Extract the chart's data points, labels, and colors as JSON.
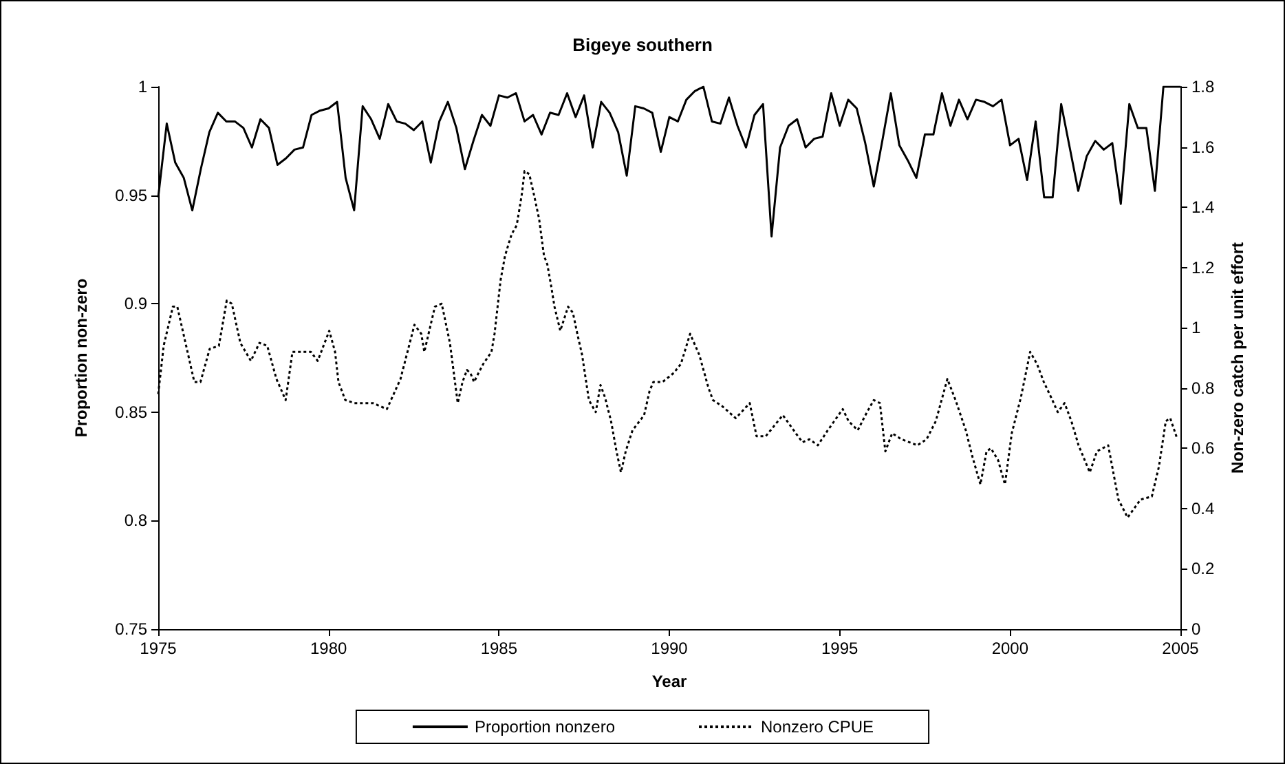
{
  "chart_data": {
    "type": "line",
    "title": "Bigeye southern",
    "xlabel": "Year",
    "ylabel": "Proportion non-zero",
    "y2label": "Non-zero catch per unit effort",
    "x": [
      1975,
      1975.25,
      1975.5,
      1975.75,
      1976,
      1976.25,
      1976.5,
      1976.75,
      1977,
      1977.25,
      1977.5,
      1977.75,
      1978,
      1978.25,
      1978.5,
      1978.75,
      1979,
      1979.25,
      1979.5,
      1979.75,
      1980,
      1980.25,
      1980.5,
      1980.75,
      1981,
      1981.25,
      1981.5,
      1981.75,
      1982,
      1982.25,
      1982.5,
      1982.75,
      1983,
      1983.25,
      1983.5,
      1983.75,
      1984,
      1984.25,
      1984.5,
      1984.75,
      1985,
      1985.25,
      1985.5,
      1985.75,
      1986,
      1986.25,
      1986.5,
      1986.75,
      1987,
      1987.25,
      1987.5,
      1987.75,
      1988,
      1988.25,
      1988.5,
      1988.75,
      1989,
      1989.25,
      1989.5,
      1989.75,
      1990,
      1990.25,
      1990.5,
      1990.75,
      1991,
      1991.25,
      1991.5,
      1991.75,
      1992,
      1992.25,
      1992.5,
      1992.75,
      1993,
      1993.25,
      1993.5,
      1993.75,
      1994,
      1994.25,
      1994.5,
      1994.75,
      1995,
      1995.25,
      1995.5,
      1995.75,
      1996,
      1996.25,
      1996.5,
      1996.75,
      1997,
      1997.25,
      1997.5,
      1997.75,
      1998,
      1998.25,
      1998.5,
      1998.75,
      1999,
      1999.25,
      1999.5,
      1999.75,
      2000,
      2000.25,
      2000.5,
      2000.75,
      2001,
      2001.25,
      2001.5,
      2001.75,
      2002,
      2002.25,
      2002.5,
      2002.75,
      2003,
      2003.25,
      2003.5,
      2003.75,
      2004,
      2004.25,
      2004.5,
      2004.75,
      2005
    ],
    "series": [
      {
        "name": "Proportion nonzero",
        "color": "#000000",
        "line_style": "solid",
        "values": [
          0.949,
          0.983,
          0.965,
          0.958,
          0.943,
          0.962,
          0.979,
          0.988,
          0.984,
          0.984,
          0.981,
          0.972,
          0.985,
          0.981,
          0.964,
          0.967,
          0.971,
          0.972,
          0.987,
          0.989,
          0.99,
          0.993,
          0.958,
          0.943,
          0.991,
          0.985,
          0.976,
          0.992,
          0.984,
          0.983,
          0.98,
          0.984,
          0.965,
          0.984,
          0.993,
          0.981,
          0.962,
          0.975,
          0.987,
          0.982,
          0.996,
          0.995,
          0.997,
          0.984,
          0.987,
          0.978,
          0.988,
          0.987,
          0.997,
          0.986,
          0.996,
          0.972,
          0.993,
          0.988,
          0.979,
          0.959,
          0.991,
          0.99,
          0.988,
          0.97,
          0.986,
          0.984,
          0.994,
          0.998,
          1.0,
          0.984,
          0.983,
          0.995,
          0.982,
          0.972,
          0.987,
          0.992,
          0.931,
          0.972,
          0.982,
          0.985,
          0.972,
          0.976,
          0.977,
          0.997,
          0.982,
          0.994,
          0.99,
          0.974,
          0.954,
          0.975,
          0.997,
          0.973,
          0.966,
          0.958,
          0.978,
          0.978,
          0.997,
          0.982,
          0.994,
          0.985,
          0.994,
          0.993,
          0.991,
          0.994,
          0.973,
          0.976,
          0.957,
          0.984,
          0.949,
          0.949,
          0.992,
          0.972,
          0.952,
          0.968,
          0.975,
          0.971,
          0.974,
          0.946,
          0.992,
          0.981,
          0.981,
          0.952,
          1.0,
          1.0,
          1.0
        ]
      },
      {
        "name": "Nonzero CPUE",
        "color": "#000000",
        "line_style": "dotted",
        "axis": "y2",
        "x": [
          1975,
          1975.16,
          1975.43,
          1975.56,
          1975.8,
          1976.06,
          1976.24,
          1976.51,
          1976.78,
          1977.01,
          1977.16,
          1977.41,
          1977.72,
          1977.97,
          1978.2,
          1978.47,
          1978.74,
          1978.94,
          1979.21,
          1979.48,
          1979.68,
          1980.02,
          1980.19,
          1980.29,
          1980.49,
          1980.76,
          1981.3,
          1981.71,
          1982.11,
          1982.52,
          1982.72,
          1982.81,
          1983.12,
          1983.32,
          1983.56,
          1983.79,
          1983.93,
          1984.06,
          1984.16,
          1984.27,
          1984.4,
          1984.54,
          1984.78,
          1984.87,
          1985.05,
          1985.18,
          1985.37,
          1985.52,
          1985.61,
          1985.68,
          1985.75,
          1985.89,
          1986.05,
          1986.18,
          1986.32,
          1986.42,
          1986.53,
          1986.63,
          1986.8,
          1987.03,
          1987.17,
          1987.3,
          1987.44,
          1987.64,
          1987.84,
          1987.98,
          1988.11,
          1988.29,
          1988.45,
          1988.58,
          1988.72,
          1988.92,
          1989.26,
          1989.42,
          1989.53,
          1989.8,
          1990.13,
          1990.34,
          1990.61,
          1990.88,
          1991.15,
          1991.28,
          1991.55,
          1991.95,
          1992.36,
          1992.56,
          1992.83,
          1993.33,
          1993.71,
          1993.91,
          1994.11,
          1994.36,
          1994.65,
          1995.09,
          1995.26,
          1995.53,
          1995.8,
          1996,
          1996.18,
          1996.34,
          1996.54,
          1996.81,
          1997.28,
          1997.55,
          1997.82,
          1998.16,
          1998.4,
          1998.7,
          1998.9,
          1999.13,
          1999.31,
          1999.44,
          1999.65,
          1999.85,
          2000.05,
          2000.32,
          2000.59,
          2000.79,
          2000.99,
          2001.2,
          2001.4,
          2001.6,
          2001.8,
          2002.01,
          2002.34,
          2002.55,
          2002.88,
          2003.18,
          2003.45,
          2003.83,
          2004.16,
          2004.37,
          2004.57,
          2004.7,
          2004.91
        ],
        "values": [
          0.78,
          0.94,
          1.07,
          1.07,
          0.95,
          0.82,
          0.82,
          0.93,
          0.94,
          1.09,
          1.08,
          0.95,
          0.89,
          0.95,
          0.94,
          0.83,
          0.76,
          0.92,
          0.92,
          0.92,
          0.89,
          0.99,
          0.92,
          0.82,
          0.76,
          0.75,
          0.75,
          0.73,
          0.83,
          1.01,
          0.98,
          0.92,
          1.07,
          1.08,
          0.95,
          0.75,
          0.82,
          0.86,
          0.85,
          0.82,
          0.85,
          0.88,
          0.92,
          0.98,
          1.16,
          1.24,
          1.31,
          1.34,
          1.4,
          1.45,
          1.52,
          1.51,
          1.43,
          1.36,
          1.24,
          1.21,
          1.14,
          1.07,
          0.99,
          1.07,
          1.05,
          0.98,
          0.91,
          0.76,
          0.72,
          0.81,
          0.77,
          0.69,
          0.59,
          0.52,
          0.59,
          0.66,
          0.71,
          0.79,
          0.82,
          0.82,
          0.85,
          0.88,
          0.98,
          0.91,
          0.8,
          0.76,
          0.74,
          0.7,
          0.75,
          0.64,
          0.64,
          0.71,
          0.65,
          0.62,
          0.63,
          0.61,
          0.66,
          0.73,
          0.69,
          0.66,
          0.72,
          0.76,
          0.75,
          0.59,
          0.65,
          0.63,
          0.61,
          0.63,
          0.69,
          0.83,
          0.76,
          0.66,
          0.57,
          0.48,
          0.59,
          0.6,
          0.56,
          0.48,
          0.65,
          0.77,
          0.92,
          0.88,
          0.82,
          0.77,
          0.72,
          0.75,
          0.69,
          0.61,
          0.52,
          0.59,
          0.61,
          0.43,
          0.37,
          0.43,
          0.44,
          0.54,
          0.69,
          0.7,
          0.63
        ]
      }
    ],
    "xlim": [
      1975,
      2005
    ],
    "xticks": [
      1975,
      1980,
      1985,
      1990,
      1995,
      2000,
      2005
    ],
    "ylim": [
      0.75,
      1
    ],
    "yticks": [
      0.75,
      0.8,
      0.85,
      0.9,
      0.95,
      1
    ],
    "y2lim": [
      0,
      1.8
    ],
    "y2ticks": [
      0,
      0.2,
      0.4,
      0.6,
      0.8,
      1,
      1.2,
      1.4,
      1.6,
      1.8
    ],
    "grid": false,
    "legend": "bottom",
    "marker": "none"
  }
}
